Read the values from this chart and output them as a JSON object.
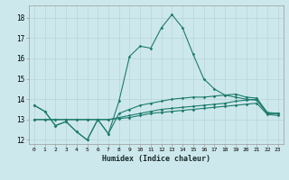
{
  "xlabel": "Humidex (Indice chaleur)",
  "x": [
    0,
    1,
    2,
    3,
    4,
    5,
    6,
    7,
    8,
    9,
    10,
    11,
    12,
    13,
    14,
    15,
    16,
    17,
    18,
    19,
    20,
    21,
    22,
    23
  ],
  "line_main": [
    13.7,
    13.4,
    12.7,
    12.9,
    12.4,
    12.0,
    13.0,
    12.3,
    13.9,
    16.1,
    16.6,
    16.5,
    17.5,
    18.15,
    17.5,
    16.2,
    15.0,
    14.5,
    14.2,
    14.1,
    14.0,
    13.95,
    13.3,
    13.3
  ],
  "line2": [
    13.7,
    13.4,
    12.7,
    12.9,
    12.4,
    12.0,
    13.0,
    12.3,
    13.3,
    13.5,
    13.7,
    13.8,
    13.9,
    14.0,
    14.05,
    14.1,
    14.1,
    14.15,
    14.2,
    14.25,
    14.1,
    14.05,
    13.35,
    13.3
  ],
  "line3": [
    13.0,
    13.0,
    13.0,
    13.0,
    13.0,
    13.0,
    13.0,
    13.0,
    13.1,
    13.2,
    13.3,
    13.4,
    13.5,
    13.55,
    13.6,
    13.65,
    13.7,
    13.75,
    13.8,
    13.9,
    13.95,
    14.0,
    13.3,
    13.3
  ],
  "line4": [
    13.0,
    13.0,
    13.0,
    13.0,
    13.0,
    13.0,
    13.0,
    13.0,
    13.05,
    13.1,
    13.2,
    13.3,
    13.35,
    13.4,
    13.45,
    13.5,
    13.55,
    13.6,
    13.65,
    13.7,
    13.75,
    13.8,
    13.25,
    13.2
  ],
  "line_color": "#1e7b6e",
  "bg_color": "#cde8ec",
  "grid_color": "#b8d4d8",
  "ylim": [
    11.8,
    18.6
  ],
  "yticks": [
    12,
    13,
    14,
    15,
    16,
    17,
    18
  ],
  "xlim": [
    -0.5,
    23.5
  ]
}
